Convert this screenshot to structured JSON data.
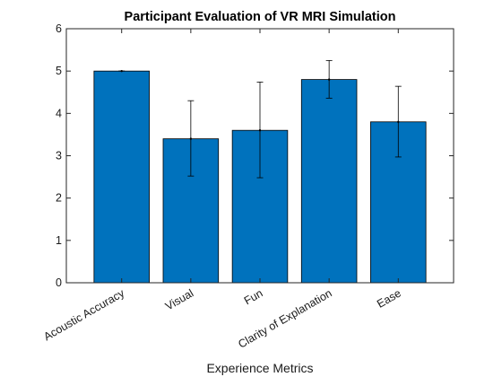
{
  "chart_data": {
    "type": "bar",
    "title": "Participant Evaluation of VR MRI Simulation",
    "xlabel": "Experience Metrics",
    "ylabel": "",
    "ylim": [
      0,
      6
    ],
    "yticks": [
      "0",
      "1",
      "2",
      "3",
      "4",
      "5",
      "6"
    ],
    "categories": [
      "Acoustic Accuracy",
      "Visual",
      "Fun",
      "Clarity of Explanation",
      "Ease"
    ],
    "values": [
      5.0,
      3.4,
      3.6,
      4.8,
      3.8
    ],
    "error_low": [
      5.0,
      2.52,
      2.48,
      4.36,
      2.97
    ],
    "error_high": [
      5.0,
      4.3,
      4.74,
      5.25,
      4.64
    ],
    "bar_color": "#0072BD",
    "grid": false
  }
}
